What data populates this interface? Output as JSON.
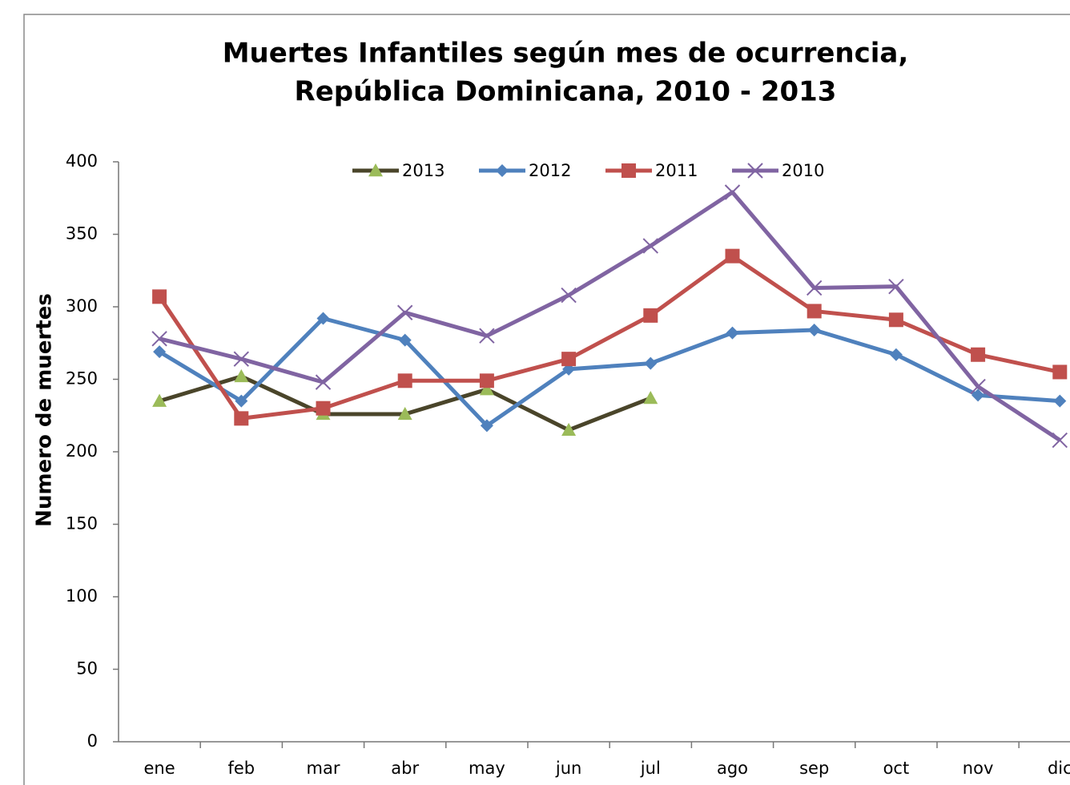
{
  "chart_data": {
    "type": "line",
    "title": [
      "Muertes Infantiles según mes de ocurrencia,",
      "República Dominicana,  2010 - 2013"
    ],
    "y_label": "Numero de muertes",
    "categories": [
      "ene",
      "feb",
      "mar",
      "abr",
      "may",
      "jun",
      "jul",
      "ago",
      "sep",
      "oct",
      "nov",
      "dic"
    ],
    "series": [
      {
        "name": "2013",
        "color": "#4a452a",
        "marker_color": "#9bbb59",
        "marker": "triangle",
        "values": [
          235,
          252,
          226,
          226,
          243,
          215,
          237,
          null,
          null,
          null,
          null,
          null
        ]
      },
      {
        "name": "2012",
        "color": "#4f81bd",
        "marker_color": "#4f81bd",
        "marker": "diamond",
        "values": [
          269,
          235,
          292,
          277,
          218,
          257,
          261,
          282,
          284,
          267,
          239,
          235
        ]
      },
      {
        "name": "2011",
        "color": "#c0504d",
        "marker_color": "#c0504d",
        "marker": "square",
        "values": [
          307,
          223,
          230,
          249,
          249,
          264,
          294,
          335,
          297,
          291,
          267,
          255
        ]
      },
      {
        "name": "2010",
        "color": "#8064a2",
        "marker_color": "#8064a2",
        "marker": "x",
        "values": [
          278,
          264,
          248,
          296,
          280,
          308,
          342,
          379,
          313,
          314,
          245,
          208
        ]
      }
    ],
    "ylim": [
      0,
      400
    ],
    "yticks": [
      0,
      50,
      100,
      150,
      200,
      250,
      300,
      350,
      400
    ],
    "grid": false,
    "legend": "top"
  }
}
